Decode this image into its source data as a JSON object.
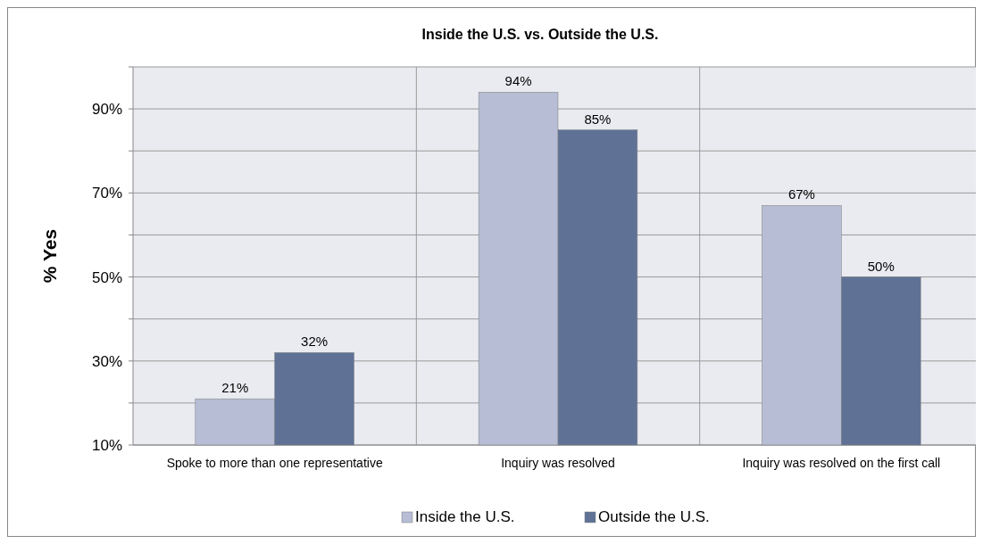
{
  "chart_data": {
    "type": "bar",
    "title": "Inside the U.S. vs. Outside the U.S.",
    "ylabel": "% Yes",
    "categories": [
      "Spoke to more than one representative",
      "Inquiry was resolved",
      "Inquiry was resolved on the first call"
    ],
    "series": [
      {
        "name": "Inside the U.S.",
        "color": "#b6bdd4",
        "values": [
          21,
          94,
          67
        ],
        "value_labels": [
          "21%",
          "94%",
          "67%"
        ]
      },
      {
        "name": "Outside the U.S.",
        "color": "#5f7296",
        "values": [
          32,
          85,
          50
        ],
        "value_labels": [
          "32%",
          "85%",
          "50%"
        ]
      }
    ],
    "ylim": [
      10,
      100
    ],
    "yticks": [
      {
        "value": 10,
        "label": "10%"
      },
      {
        "value": 20,
        "label": null
      },
      {
        "value": 30,
        "label": "30%"
      },
      {
        "value": 40,
        "label": null
      },
      {
        "value": 50,
        "label": "50%"
      },
      {
        "value": 60,
        "label": null
      },
      {
        "value": 70,
        "label": "70%"
      },
      {
        "value": 80,
        "label": null
      },
      {
        "value": 90,
        "label": "90%"
      },
      {
        "value": 100,
        "label": null
      }
    ],
    "grid": true,
    "legend": "bottom"
  }
}
